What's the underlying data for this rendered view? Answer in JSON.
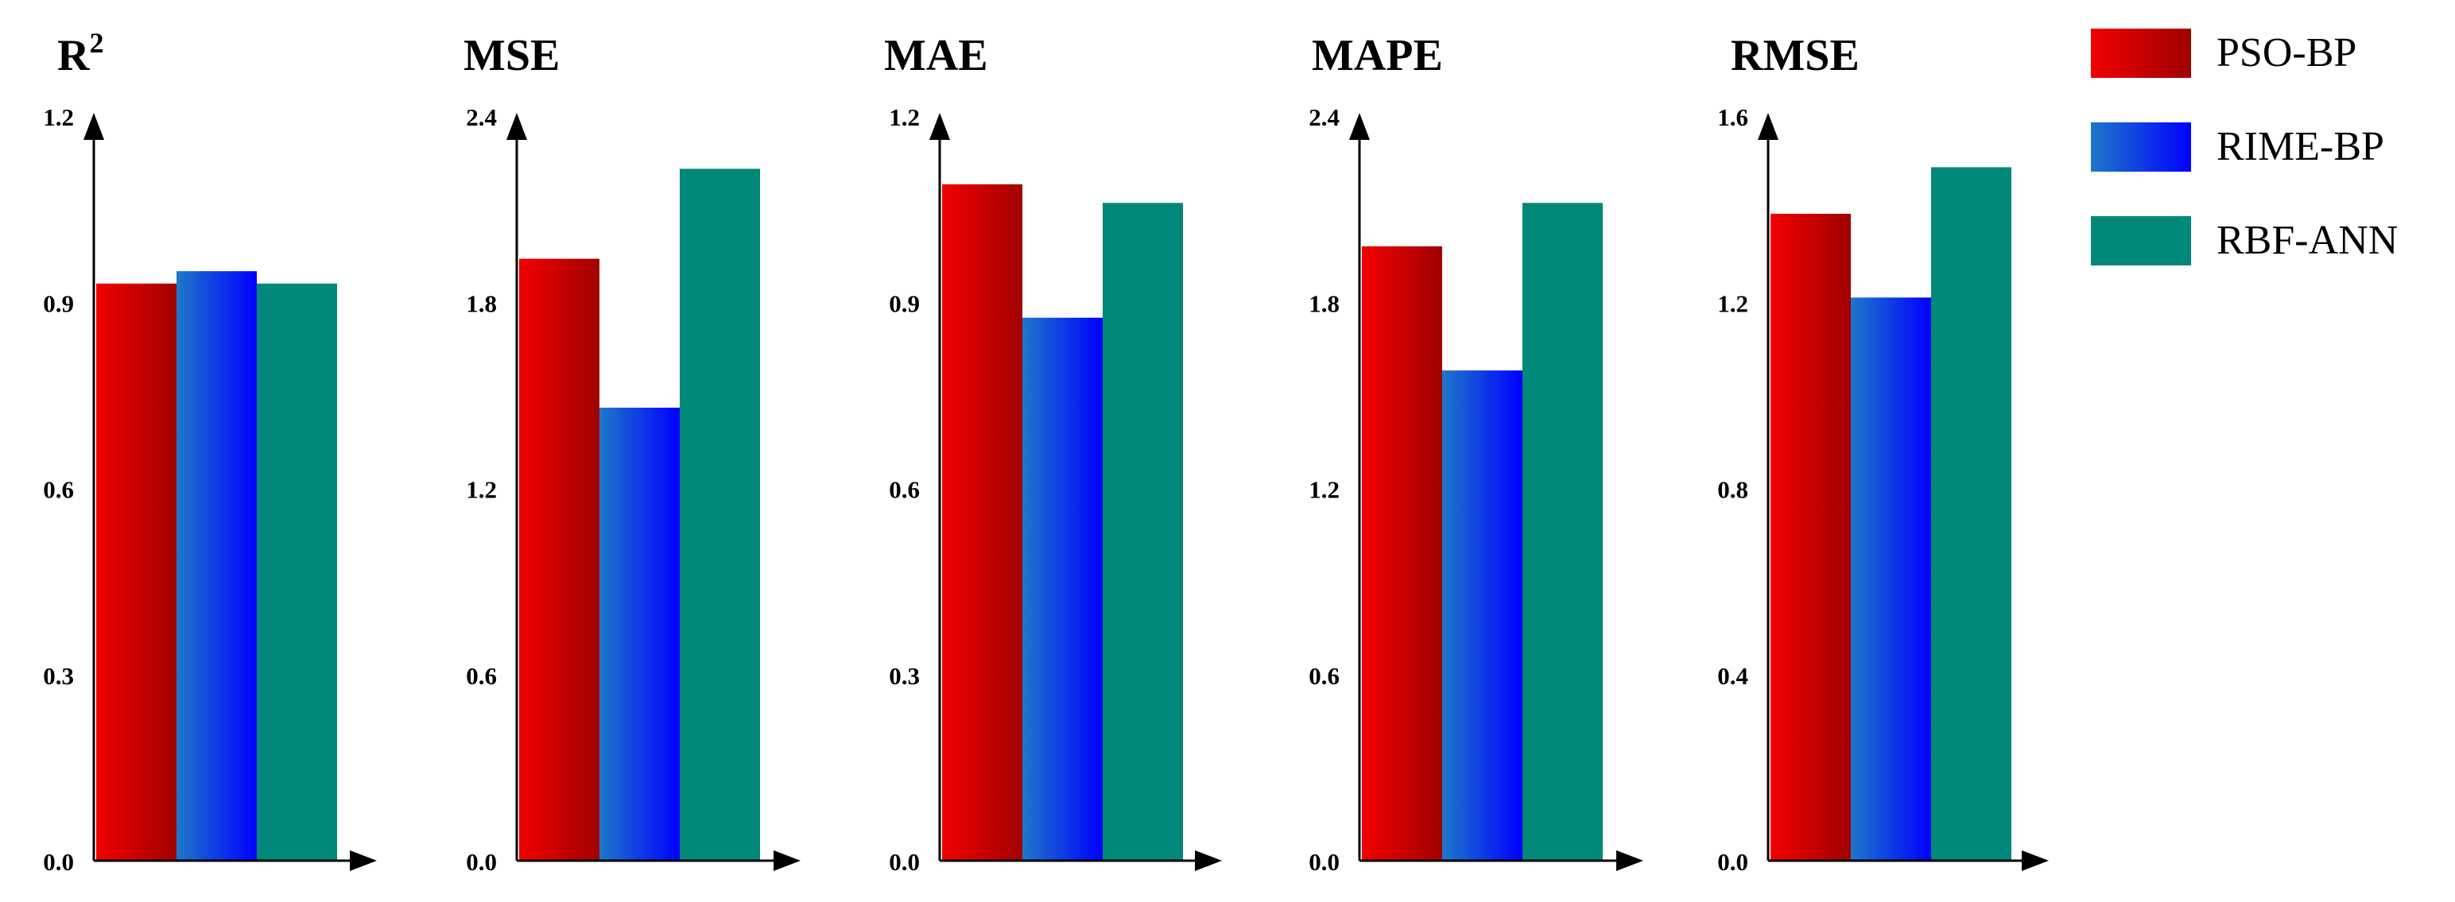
{
  "legend": {
    "placement": "top-right",
    "items": [
      {
        "name": "PSO-BP",
        "colors": [
          "#f20000",
          "#a10000"
        ]
      },
      {
        "name": "RIME-BP",
        "colors": [
          "#1e78c8",
          "#0000ff"
        ]
      },
      {
        "name": "RBF-ANN",
        "colors": [
          "#008878",
          "#008878"
        ]
      }
    ]
  },
  "chart_data": [
    {
      "type": "bar",
      "title": "R",
      "title_sup": "2",
      "series_names": [
        "PSO-BP",
        "RIME-BP",
        "RBF-ANN"
      ],
      "values": [
        0.93,
        0.95,
        0.93
      ],
      "ylim": [
        0,
        1.2
      ],
      "ticks": [
        0,
        0.3,
        0.6,
        0.9,
        1.2
      ],
      "tick_labels": [
        "0.0",
        "0.3",
        "0.6",
        "0.9",
        "1.2"
      ],
      "grid": false
    },
    {
      "type": "bar",
      "title": "MSE",
      "series_names": [
        "PSO-BP",
        "RIME-BP",
        "RBF-ANN"
      ],
      "values": [
        1.94,
        1.46,
        2.23
      ],
      "ylim": [
        0,
        2.4
      ],
      "ticks": [
        0,
        0.6,
        1.2,
        1.8,
        2.4
      ],
      "tick_labels": [
        "0.0",
        "0.6",
        "1.2",
        "1.8",
        "2.4"
      ],
      "grid": false
    },
    {
      "type": "bar",
      "title": "MAE",
      "series_names": [
        "PSO-BP",
        "RIME-BP",
        "RBF-ANN"
      ],
      "values": [
        1.09,
        0.875,
        1.06
      ],
      "ylim": [
        0,
        1.2
      ],
      "ticks": [
        0,
        0.3,
        0.6,
        0.9,
        1.2
      ],
      "tick_labels": [
        "0.0",
        "0.3",
        "0.6",
        "0.9",
        "1.2"
      ],
      "grid": false
    },
    {
      "type": "bar",
      "title": "MAPE",
      "series_names": [
        "PSO-BP",
        "RIME-BP",
        "RBF-ANN"
      ],
      "values": [
        1.98,
        1.58,
        2.12
      ],
      "ylim": [
        0,
        2.4
      ],
      "ticks": [
        0,
        0.6,
        1.2,
        1.8,
        2.4
      ],
      "tick_labels": [
        "0.0",
        "0.6",
        "1.2",
        "1.8",
        "2.4"
      ],
      "grid": false
    },
    {
      "type": "bar",
      "title": "RMSE",
      "series_names": [
        "PSO-BP",
        "RIME-BP",
        "RBF-ANN"
      ],
      "values": [
        1.39,
        1.21,
        1.49
      ],
      "ylim": [
        0,
        1.6
      ],
      "ticks": [
        0,
        0.4,
        0.8,
        1.2,
        1.6
      ],
      "tick_labels": [
        "0.0",
        "0.4",
        "0.8",
        "1.2",
        "1.6"
      ],
      "grid": false
    }
  ]
}
